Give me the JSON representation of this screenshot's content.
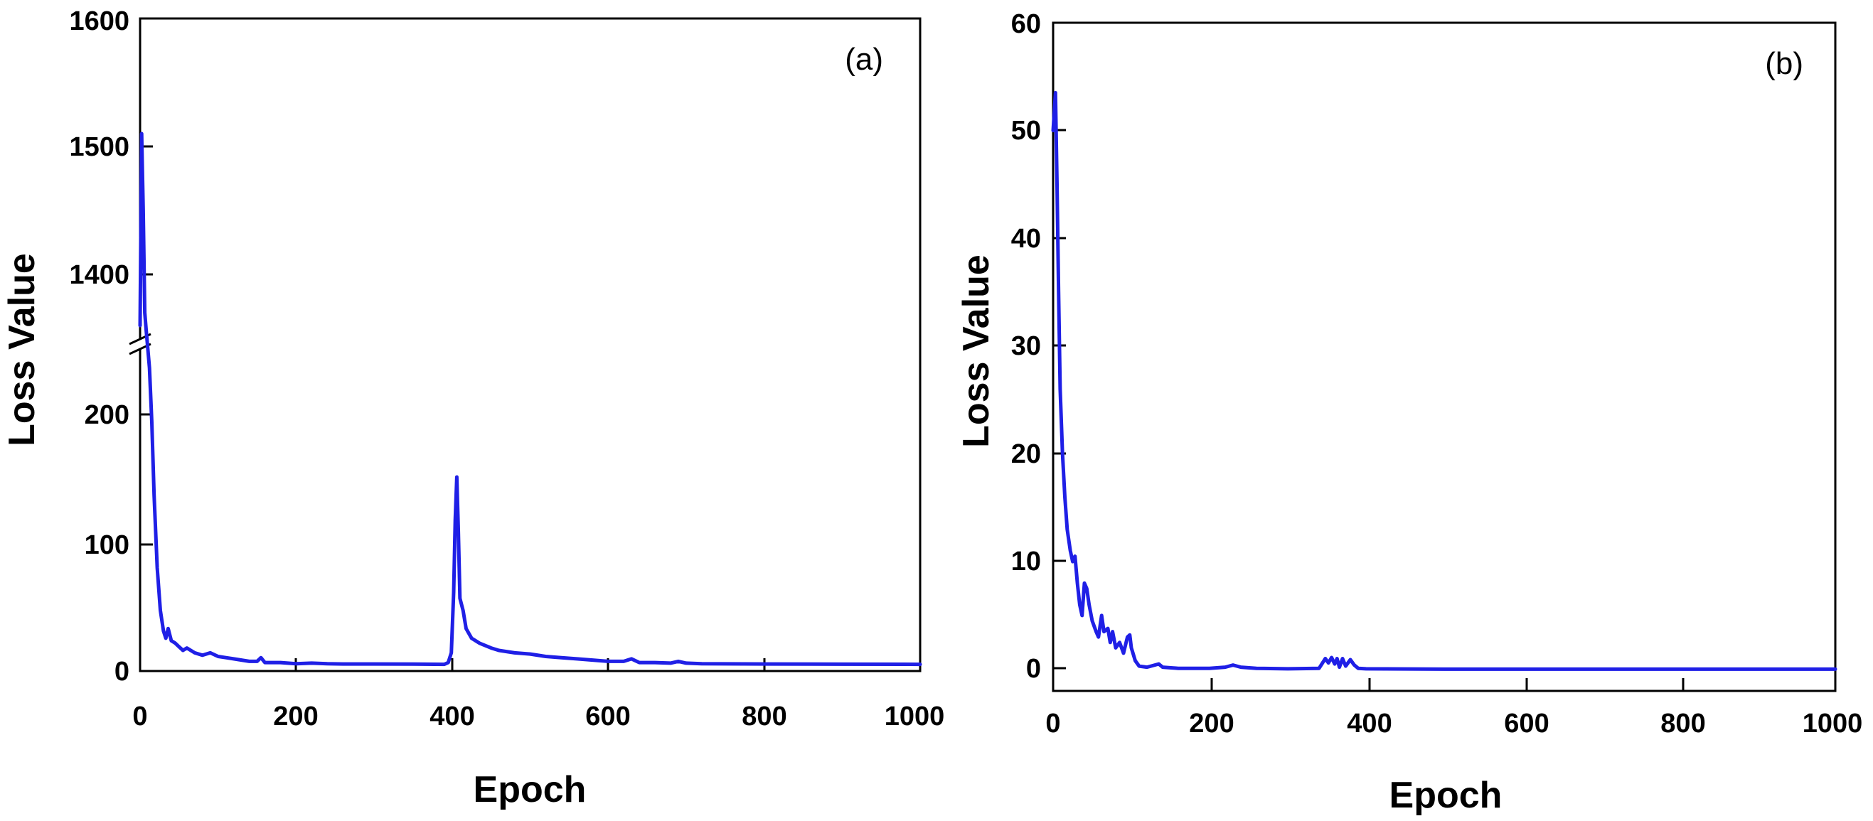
{
  "chart_data": [
    {
      "panel": "(a)",
      "type": "line",
      "xlabel": "Epoch",
      "ylabel": "Loss Value",
      "xlim": [
        0,
        1000
      ],
      "x_ticks": [
        "0",
        "200",
        "400",
        "600",
        "800",
        "1000"
      ],
      "y_broken_axis": true,
      "ylim_lower": [
        -5,
        260
      ],
      "ylim_upper": [
        1350,
        1600
      ],
      "y_ticks_lower": [
        "0",
        "100",
        "200"
      ],
      "y_ticks_upper": [
        "1400",
        "1500",
        "1600"
      ],
      "grid": false,
      "series": [
        {
          "name": "loss",
          "color": "#1f1fe6",
          "points": [
            [
              0,
              1360
            ],
            [
              2,
              1510
            ],
            [
              4,
              1450
            ],
            [
              6,
              1370
            ],
            [
              8,
              1355
            ],
            [
              10,
              260
            ],
            [
              12,
              245
            ],
            [
              15,
              200
            ],
            [
              18,
              140
            ],
            [
              22,
              80
            ],
            [
              26,
              45
            ],
            [
              30,
              28
            ],
            [
              33,
              22
            ],
            [
              36,
              30
            ],
            [
              40,
              20
            ],
            [
              45,
              18
            ],
            [
              50,
              15
            ],
            [
              55,
              12
            ],
            [
              60,
              14
            ],
            [
              70,
              10
            ],
            [
              80,
              8
            ],
            [
              90,
              10
            ],
            [
              100,
              7
            ],
            [
              110,
              6
            ],
            [
              120,
              5
            ],
            [
              130,
              4
            ],
            [
              140,
              3
            ],
            [
              150,
              3
            ],
            [
              155,
              6
            ],
            [
              160,
              2
            ],
            [
              180,
              2
            ],
            [
              200,
              1
            ],
            [
              220,
              1.5
            ],
            [
              240,
              1
            ],
            [
              260,
              0.8
            ],
            [
              300,
              0.8
            ],
            [
              350,
              0.7
            ],
            [
              390,
              0.5
            ],
            [
              395,
              2
            ],
            [
              399,
              10
            ],
            [
              402,
              60
            ],
            [
              404,
              120
            ],
            [
              406,
              155
            ],
            [
              408,
              110
            ],
            [
              410,
              55
            ],
            [
              414,
              45
            ],
            [
              418,
              30
            ],
            [
              425,
              22
            ],
            [
              435,
              18
            ],
            [
              450,
              14
            ],
            [
              460,
              12
            ],
            [
              480,
              10
            ],
            [
              500,
              9
            ],
            [
              520,
              7
            ],
            [
              540,
              6
            ],
            [
              560,
              5
            ],
            [
              580,
              4
            ],
            [
              600,
              3
            ],
            [
              620,
              3
            ],
            [
              630,
              5
            ],
            [
              640,
              2
            ],
            [
              660,
              2
            ],
            [
              680,
              1.5
            ],
            [
              690,
              3
            ],
            [
              700,
              1.5
            ],
            [
              720,
              1
            ],
            [
              800,
              0.8
            ],
            [
              900,
              0.6
            ],
            [
              1000,
              0.5
            ]
          ]
        }
      ]
    },
    {
      "panel": "(b)",
      "type": "line",
      "xlabel": "Epoch",
      "ylabel": "Loss Value",
      "xlim": [
        0,
        1000
      ],
      "ylim": [
        -2,
        60
      ],
      "x_ticks": [
        "0",
        "200",
        "400",
        "600",
        "800",
        "1000"
      ],
      "y_ticks": [
        "0",
        "10",
        "20",
        "30",
        "40",
        "50",
        "60"
      ],
      "grid": false,
      "series": [
        {
          "name": "loss",
          "color": "#1f1fe6",
          "points": [
            [
              0,
              50
            ],
            [
              3,
              53.5
            ],
            [
              5,
              45
            ],
            [
              7,
              35
            ],
            [
              9,
              26
            ],
            [
              12,
              20
            ],
            [
              15,
              16
            ],
            [
              18,
              13
            ],
            [
              22,
              11
            ],
            [
              25,
              10
            ],
            [
              28,
              10.5
            ],
            [
              31,
              8
            ],
            [
              34,
              6
            ],
            [
              37,
              5
            ],
            [
              40,
              8
            ],
            [
              43,
              7.5
            ],
            [
              46,
              6
            ],
            [
              50,
              4.5
            ],
            [
              55,
              3.5
            ],
            [
              58,
              3
            ],
            [
              62,
              5
            ],
            [
              65,
              3.5
            ],
            [
              70,
              3.8
            ],
            [
              73,
              2.5
            ],
            [
              76,
              3.5
            ],
            [
              80,
              2
            ],
            [
              85,
              2.5
            ],
            [
              90,
              1.5
            ],
            [
              95,
              3
            ],
            [
              98,
              3.2
            ],
            [
              100,
              2
            ],
            [
              105,
              0.8
            ],
            [
              110,
              0.3
            ],
            [
              120,
              0.2
            ],
            [
              135,
              0.5
            ],
            [
              140,
              0.2
            ],
            [
              160,
              0.1
            ],
            [
              200,
              0.1
            ],
            [
              220,
              0.2
            ],
            [
              230,
              0.4
            ],
            [
              240,
              0.2
            ],
            [
              260,
              0.1
            ],
            [
              300,
              0.05
            ],
            [
              340,
              0.1
            ],
            [
              348,
              1
            ],
            [
              352,
              0.6
            ],
            [
              356,
              1.1
            ],
            [
              360,
              0.5
            ],
            [
              363,
              1
            ],
            [
              366,
              0.2
            ],
            [
              370,
              1
            ],
            [
              374,
              0.3
            ],
            [
              380,
              0.9
            ],
            [
              385,
              0.4
            ],
            [
              390,
              0.1
            ],
            [
              400,
              0.05
            ],
            [
              500,
              0.02
            ],
            [
              600,
              0.02
            ],
            [
              800,
              0.02
            ],
            [
              1000,
              0.02
            ]
          ]
        }
      ]
    }
  ]
}
